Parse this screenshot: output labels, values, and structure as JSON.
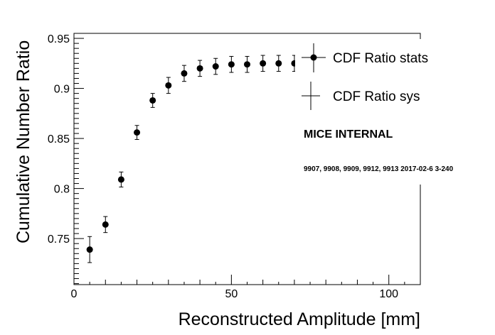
{
  "chart_data": {
    "type": "scatter",
    "title": "",
    "xlabel": "Reconstructed Amplitude [mm]",
    "ylabel": "Cumulative Number Ratio",
    "xlim": [
      0,
      110
    ],
    "ylim": [
      0.704,
      0.955
    ],
    "x_ticks": [
      "0",
      "50",
      "100"
    ],
    "y_ticks": [
      "0.75",
      "0.8",
      "0.85",
      "0.9",
      "0.95"
    ],
    "grid": false,
    "legend_position": "top-right",
    "series": [
      {
        "name": "CDF Ratio stats",
        "marker": "filled-circle",
        "color": "#000000",
        "x": [
          5,
          10,
          15,
          20,
          25,
          30,
          35,
          40,
          45,
          50,
          55,
          60,
          65,
          70
        ],
        "y": [
          0.739,
          0.764,
          0.809,
          0.856,
          0.888,
          0.903,
          0.915,
          0.92,
          0.922,
          0.924,
          0.924,
          0.925,
          0.925,
          0.925
        ],
        "err": [
          0.013,
          0.008,
          0.0075,
          0.007,
          0.007,
          0.008,
          0.008,
          0.008,
          0.008,
          0.008,
          0.008,
          0.008,
          0.008,
          0.008
        ]
      },
      {
        "name": "CDF Ratio sys",
        "marker": "cross",
        "color": "#000000"
      }
    ],
    "annotations": [
      "MICE INTERNAL",
      "9907, 9908, 9909, 9912, 9913 2017-02-6 3-240"
    ]
  }
}
